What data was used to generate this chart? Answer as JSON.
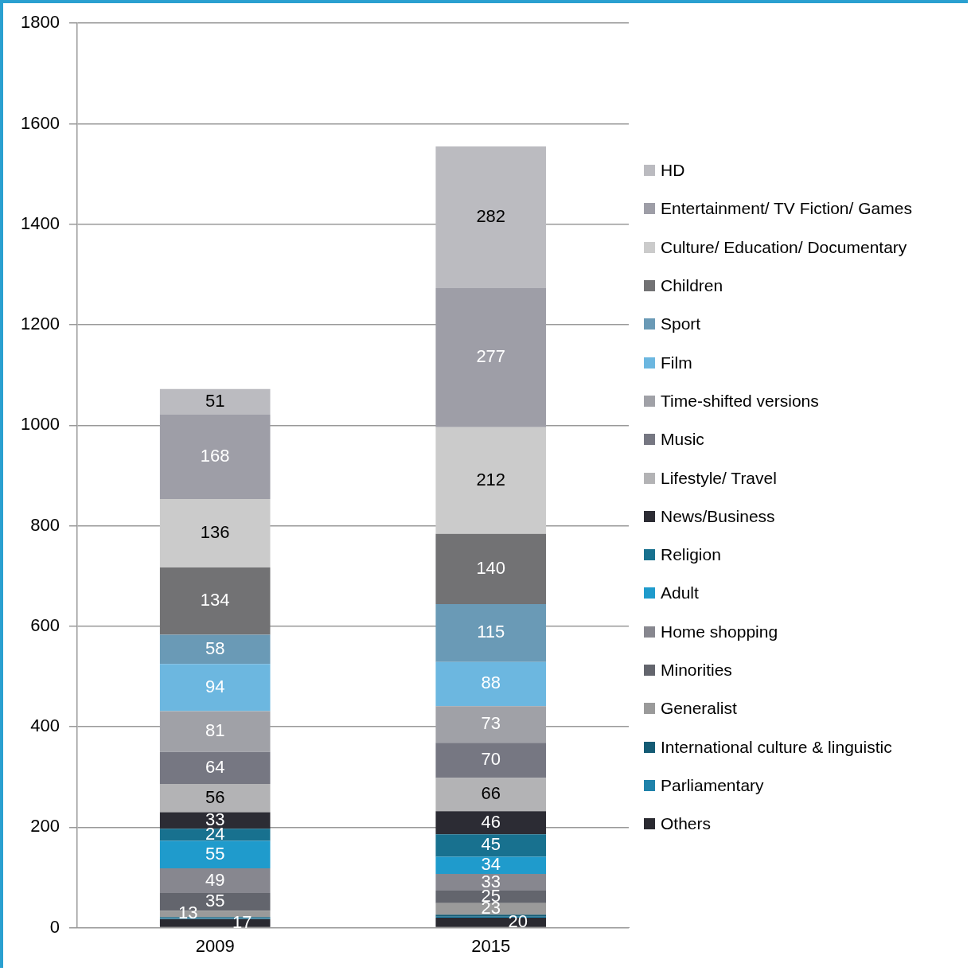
{
  "chart_data": {
    "type": "bar",
    "stacked": true,
    "categories": [
      "2009",
      "2015"
    ],
    "ylim": [
      0,
      1800
    ],
    "yticks": [
      0,
      200,
      400,
      600,
      800,
      1000,
      1200,
      1400,
      1600,
      1800
    ],
    "grid": "y",
    "legend": "right",
    "series": [
      {
        "name": "Others",
        "color": "#2a2a31",
        "values": [
          17,
          20
        ],
        "value_labels": [
          "17",
          "20"
        ]
      },
      {
        "name": "Parliamentary",
        "color": "#1f82aa",
        "values": [
          2,
          2
        ],
        "value_labels": [
          null,
          null
        ]
      },
      {
        "name": "International culture & linguistic",
        "color": "#145b74",
        "values": [
          2,
          4
        ],
        "value_labels": [
          null,
          null
        ]
      },
      {
        "name": "Generalist",
        "color": "#9a9a9a",
        "values": [
          13,
          23
        ],
        "value_labels": [
          "13",
          "23"
        ]
      },
      {
        "name": "Minorities",
        "color": "#63656d",
        "values": [
          35,
          25
        ],
        "value_labels": [
          "35",
          "25"
        ]
      },
      {
        "name": "Home shopping",
        "color": "#87878f",
        "values": [
          49,
          33
        ],
        "value_labels": [
          "49",
          "33"
        ]
      },
      {
        "name": "Adult",
        "color": "#1f9bcc",
        "values": [
          55,
          34
        ],
        "value_labels": [
          "55",
          "34"
        ]
      },
      {
        "name": "Religion",
        "color": "#18718f",
        "values": [
          24,
          45
        ],
        "value_labels": [
          "24",
          "45"
        ]
      },
      {
        "name": "News/Business",
        "color": "#2c2c34",
        "values": [
          33,
          46
        ],
        "value_labels": [
          "33",
          "46"
        ]
      },
      {
        "name": "Lifestyle/ Travel",
        "color": "#b3b3b5",
        "values": [
          56,
          66
        ],
        "value_labels": [
          "56",
          "66"
        ]
      },
      {
        "name": "Music",
        "color": "#767782",
        "values": [
          64,
          70
        ],
        "value_labels": [
          "64",
          "70"
        ]
      },
      {
        "name": "Time-shifted versions",
        "color": "#a0a1a7",
        "values": [
          81,
          73
        ],
        "value_labels": [
          "81",
          "73"
        ]
      },
      {
        "name": "Film",
        "color": "#6cb7e0",
        "values": [
          94,
          88
        ],
        "value_labels": [
          "94",
          "88"
        ]
      },
      {
        "name": "Sport",
        "color": "#6a9ab6",
        "values": [
          58,
          115
        ],
        "value_labels": [
          "58",
          "115"
        ]
      },
      {
        "name": "Children",
        "color": "#727274",
        "values": [
          134,
          140
        ],
        "value_labels": [
          "134",
          "140"
        ]
      },
      {
        "name": "Culture/ Education/ Documentary",
        "color": "#cbcbcb",
        "values": [
          136,
          212
        ],
        "value_labels": [
          "136",
          "212"
        ]
      },
      {
        "name": "Entertainment/ TV Fiction/ Games",
        "color": "#9e9ea7",
        "values": [
          168,
          277
        ],
        "value_labels": [
          "168",
          "277"
        ]
      },
      {
        "name": "HD",
        "color": "#bbbbc0",
        "values": [
          51,
          282
        ],
        "value_labels": [
          "51",
          "282"
        ]
      }
    ]
  }
}
